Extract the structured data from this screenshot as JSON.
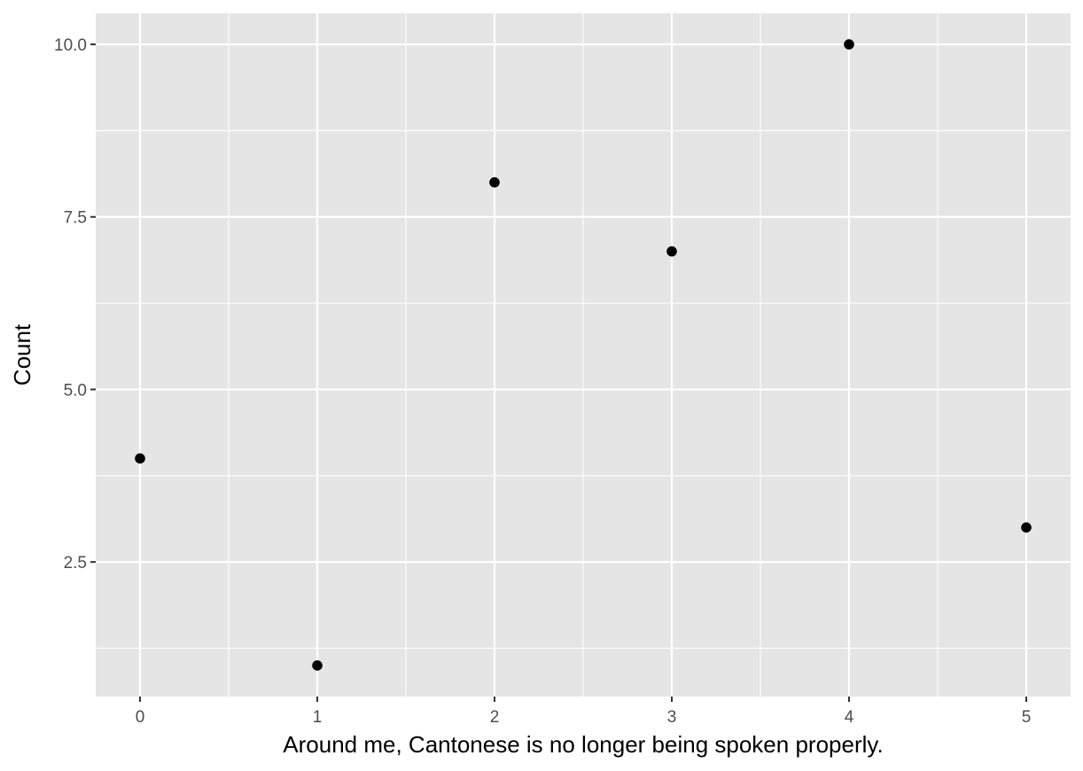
{
  "chart_data": {
    "type": "scatter",
    "title": "",
    "xlabel": "Around me, Cantonese is no longer being spoken properly.",
    "ylabel": "Count",
    "x_ticks": [
      "0",
      "1",
      "2",
      "3",
      "4",
      "5"
    ],
    "y_ticks": [
      "2.5",
      "5.0",
      "7.5",
      "10.0"
    ],
    "xlim": [
      -0.25,
      5.25
    ],
    "ylim": [
      0.55,
      10.45
    ],
    "grid": true,
    "legend": "none",
    "points": [
      {
        "x": 0,
        "y": 4
      },
      {
        "x": 1,
        "y": 1
      },
      {
        "x": 2,
        "y": 8
      },
      {
        "x": 3,
        "y": 7
      },
      {
        "x": 4,
        "y": 10
      },
      {
        "x": 5,
        "y": 3
      }
    ],
    "colors": {
      "panel": "#e5e5e5",
      "grid": "#ffffff",
      "point": "#000000",
      "tick": "#333333"
    }
  }
}
